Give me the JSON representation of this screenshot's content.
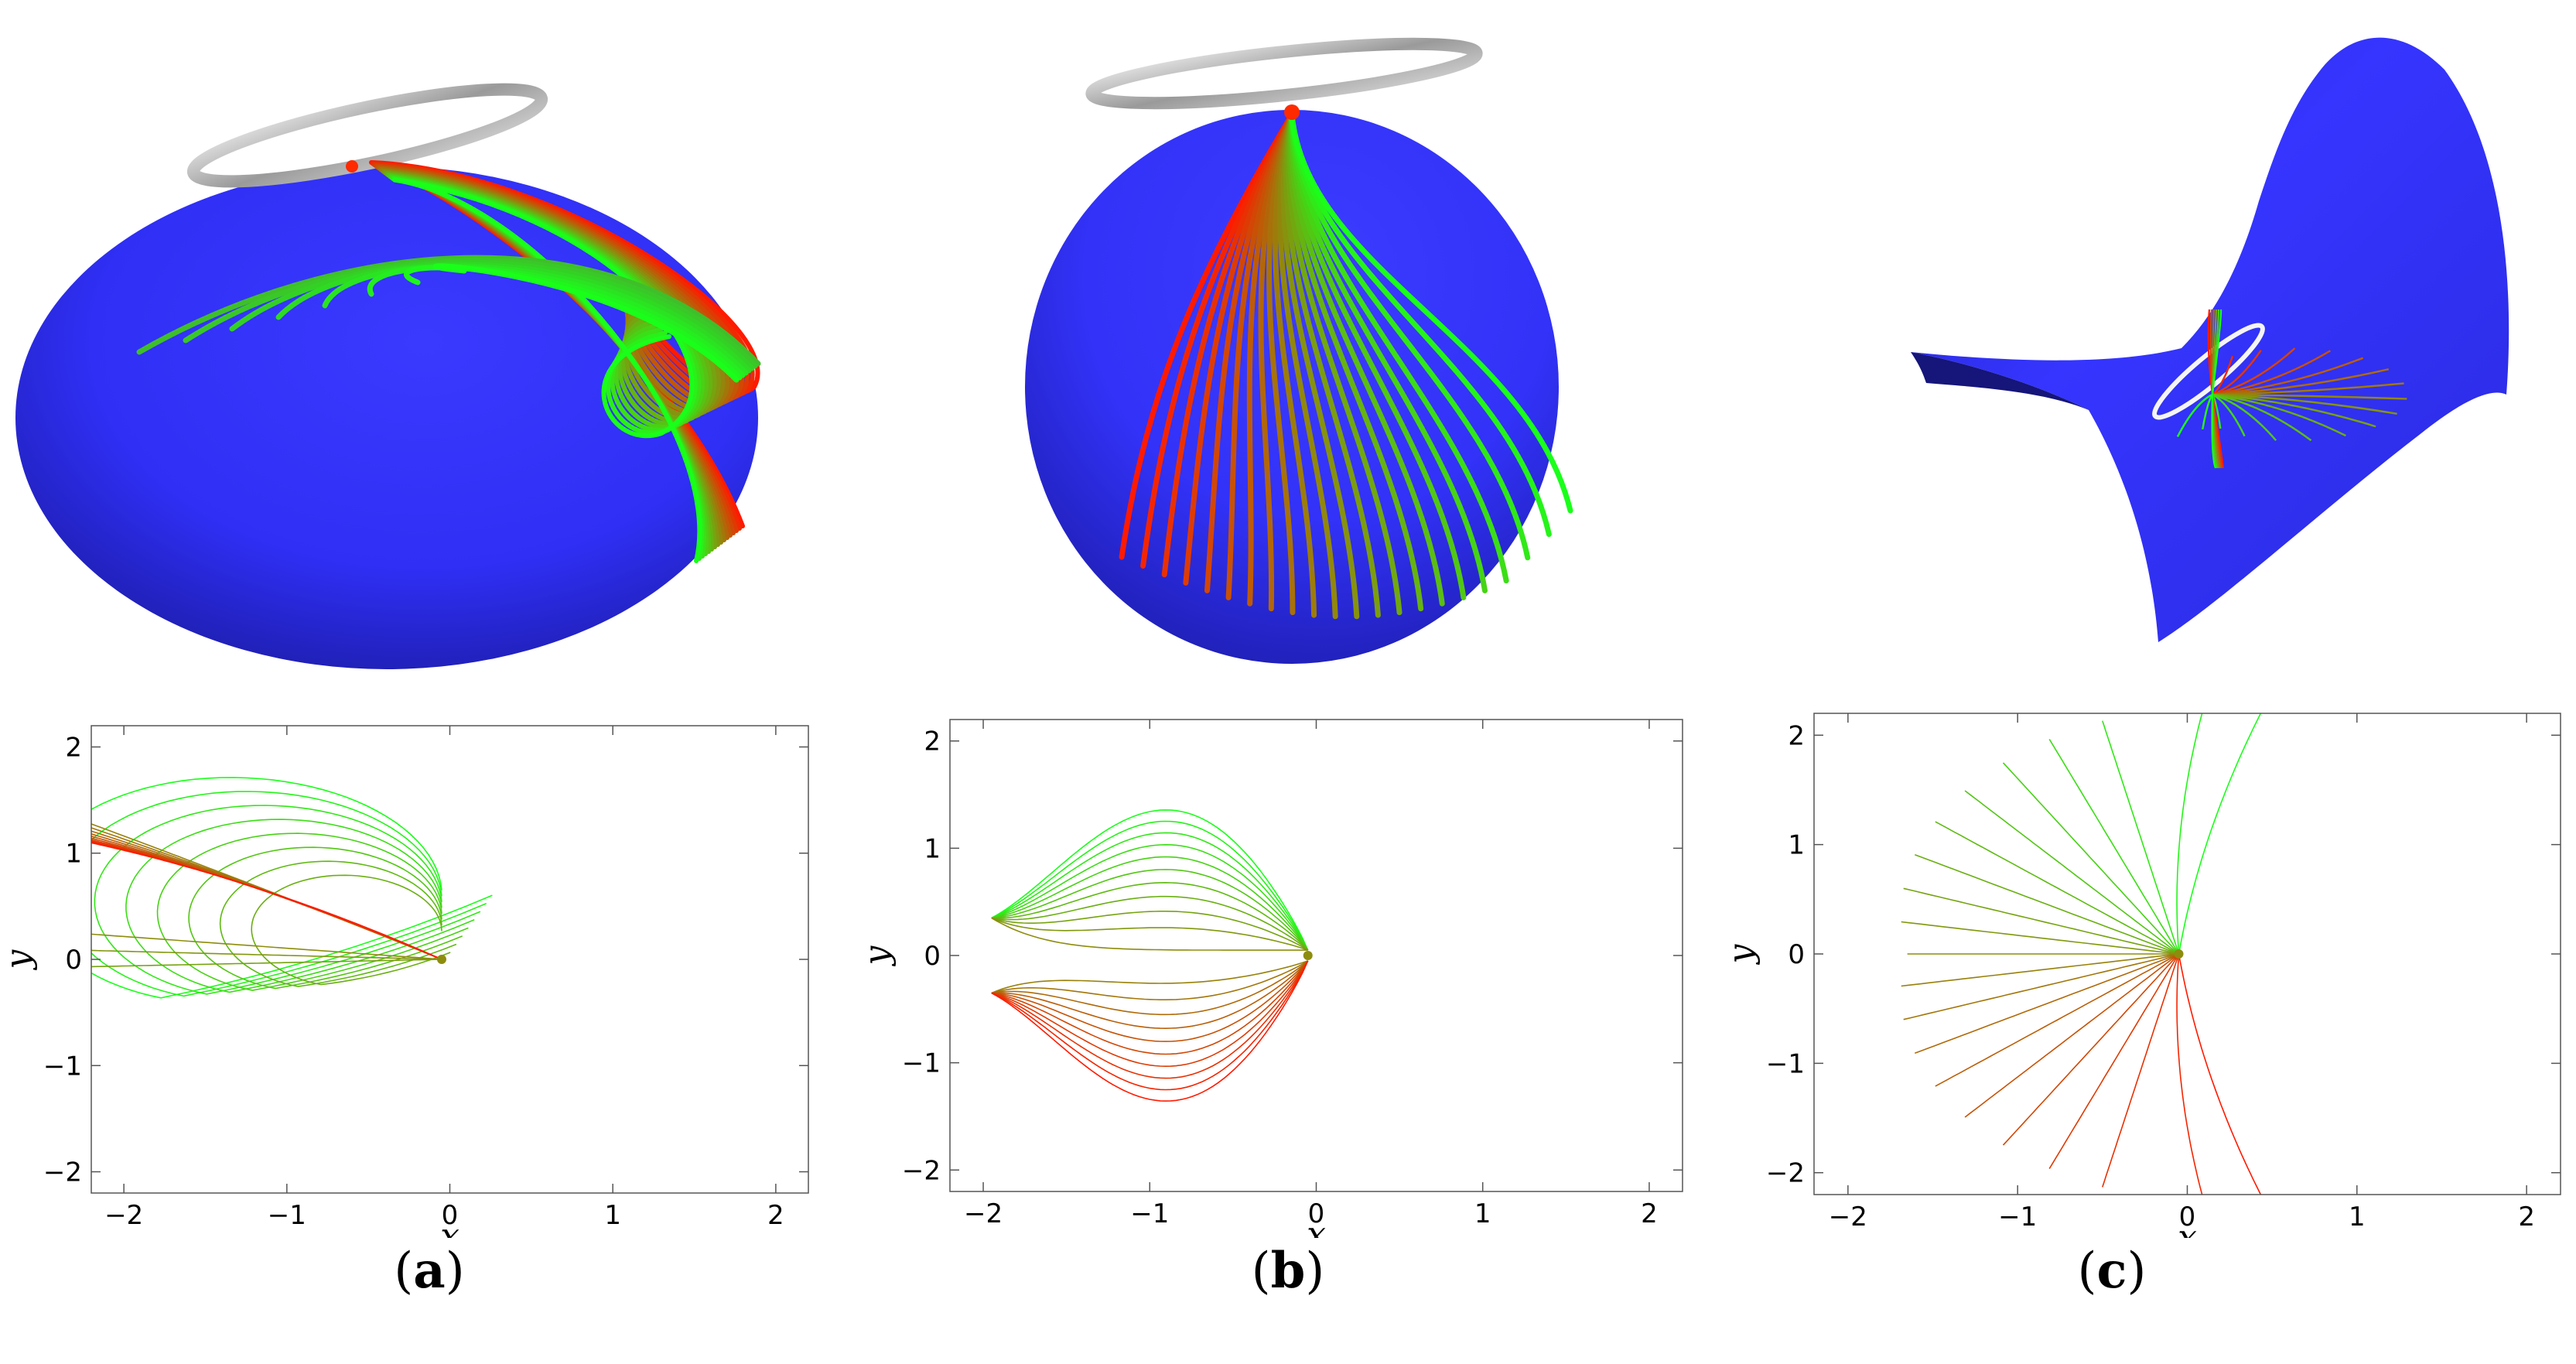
{
  "colors": {
    "surface": "#3030ff",
    "surface_dark": "#10108a",
    "traj_start": "#ff1a00",
    "traj_end": "#1aff1a",
    "ring": "#b5b5b5",
    "ring_c": "#ffffff"
  },
  "panels": [
    {
      "id": "a",
      "caption_letter": "a",
      "render": "ellipsoid-with-ring-and-bundle"
    },
    {
      "id": "b",
      "caption_letter": "b",
      "render": "sphere-with-ring-and-fan"
    },
    {
      "id": "c",
      "caption_letter": "c",
      "render": "saddle-with-ring-and-spray"
    }
  ],
  "caption_parens": {
    "open": "(",
    "close": ")"
  },
  "chart_data": [
    {
      "type": "line",
      "panel": "a",
      "title": "",
      "xlabel": "x",
      "ylabel": "y",
      "xlim": [
        -2.2,
        2.2
      ],
      "ylim": [
        -2.2,
        2.2
      ],
      "xticks": [
        -2,
        -1,
        0,
        1,
        2
      ],
      "yticks": [
        -2,
        -1,
        0,
        1,
        2
      ],
      "xtick_labels": [
        "−2",
        "−1",
        "0",
        "1",
        "2"
      ],
      "ytick_labels": [
        "−2",
        "−1",
        "0",
        "1",
        "2"
      ],
      "grid": false,
      "legend": "none",
      "origin": [
        -0.05,
        0
      ],
      "family": "loops-and-rays",
      "n_series": 21,
      "series_note": "Color runs from green (top) to red (bottom)"
    },
    {
      "type": "line",
      "panel": "b",
      "title": "",
      "xlabel": "x",
      "ylabel": "y",
      "xlim": [
        -2.2,
        2.2
      ],
      "ylim": [
        -2.2,
        2.2
      ],
      "xticks": [
        -2,
        -1,
        0,
        1,
        2
      ],
      "yticks": [
        -2,
        -1,
        0,
        1,
        2
      ],
      "xtick_labels": [
        "−2",
        "−1",
        "0",
        "1",
        "2"
      ],
      "ytick_labels": [
        "−2",
        "−1",
        "0",
        "1",
        "2"
      ],
      "grid": false,
      "legend": "none",
      "origin": [
        -0.05,
        0
      ],
      "family": "heart-lobes",
      "n_series": 21,
      "lobe_tip_x": -1.95,
      "max_height": 1.4
    },
    {
      "type": "line",
      "panel": "c",
      "title": "",
      "xlabel": "x",
      "ylabel": "y",
      "xlim": [
        -2.2,
        2.2
      ],
      "ylim": [
        -2.2,
        2.2
      ],
      "xticks": [
        -2,
        -1,
        0,
        1,
        2
      ],
      "yticks": [
        -2,
        -1,
        0,
        1,
        2
      ],
      "xtick_labels": [
        "−2",
        "−1",
        "0",
        "1",
        "2"
      ],
      "ytick_labels": [
        "−2",
        "−1",
        "0",
        "1",
        "2"
      ],
      "grid": false,
      "legend": "none",
      "origin": [
        -0.05,
        0
      ],
      "family": "fan-rays",
      "n_series": 21
    }
  ]
}
